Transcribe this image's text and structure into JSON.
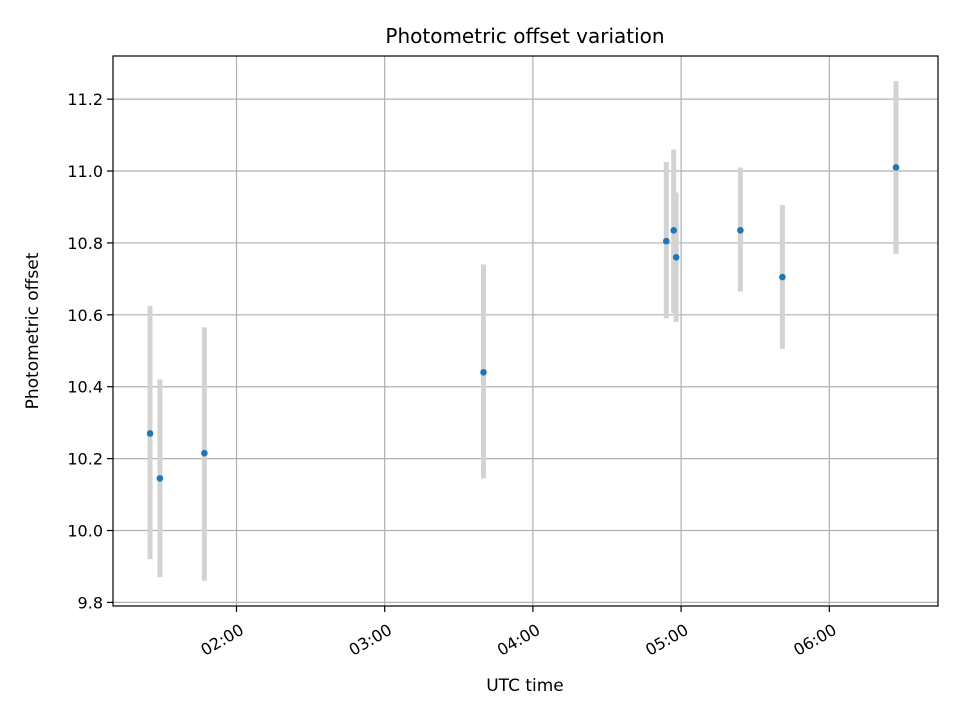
{
  "chart_data": {
    "type": "scatter",
    "title": "Photometric offset variation",
    "xlabel": "UTC time",
    "ylabel": "Photometric offset",
    "x_axis_kind": "time",
    "xlim": [
      "01:10",
      "06:44"
    ],
    "ylim": [
      9.79,
      11.32
    ],
    "xticks": [
      "02:00",
      "03:00",
      "04:00",
      "05:00",
      "06:00"
    ],
    "yticks": [
      9.8,
      10.0,
      10.2,
      10.4,
      10.6,
      10.8,
      11.0,
      11.2
    ],
    "grid": true,
    "point_color": "#1f77b4",
    "errorbar_color": "#d3d3d3",
    "series": [
      {
        "points": [
          {
            "x": "01:25",
            "y": 10.27,
            "err_low": 9.92,
            "err_high": 10.625
          },
          {
            "x": "01:29",
            "y": 10.145,
            "err_low": 9.87,
            "err_high": 10.42
          },
          {
            "x": "01:47",
            "y": 10.215,
            "err_low": 9.86,
            "err_high": 10.565
          },
          {
            "x": "03:40",
            "y": 10.44,
            "err_low": 10.145,
            "err_high": 10.74
          },
          {
            "x": "04:54",
            "y": 10.805,
            "err_low": 10.59,
            "err_high": 11.025
          },
          {
            "x": "04:57",
            "y": 10.835,
            "err_low": 10.605,
            "err_high": 11.06
          },
          {
            "x": "04:58",
            "y": 10.76,
            "err_low": 10.58,
            "err_high": 10.94
          },
          {
            "x": "05:24",
            "y": 10.835,
            "err_low": 10.665,
            "err_high": 11.01
          },
          {
            "x": "05:41",
            "y": 10.705,
            "err_low": 10.505,
            "err_high": 10.905
          },
          {
            "x": "06:27",
            "y": 11.01,
            "err_low": 10.77,
            "err_high": 11.25
          }
        ]
      }
    ]
  }
}
